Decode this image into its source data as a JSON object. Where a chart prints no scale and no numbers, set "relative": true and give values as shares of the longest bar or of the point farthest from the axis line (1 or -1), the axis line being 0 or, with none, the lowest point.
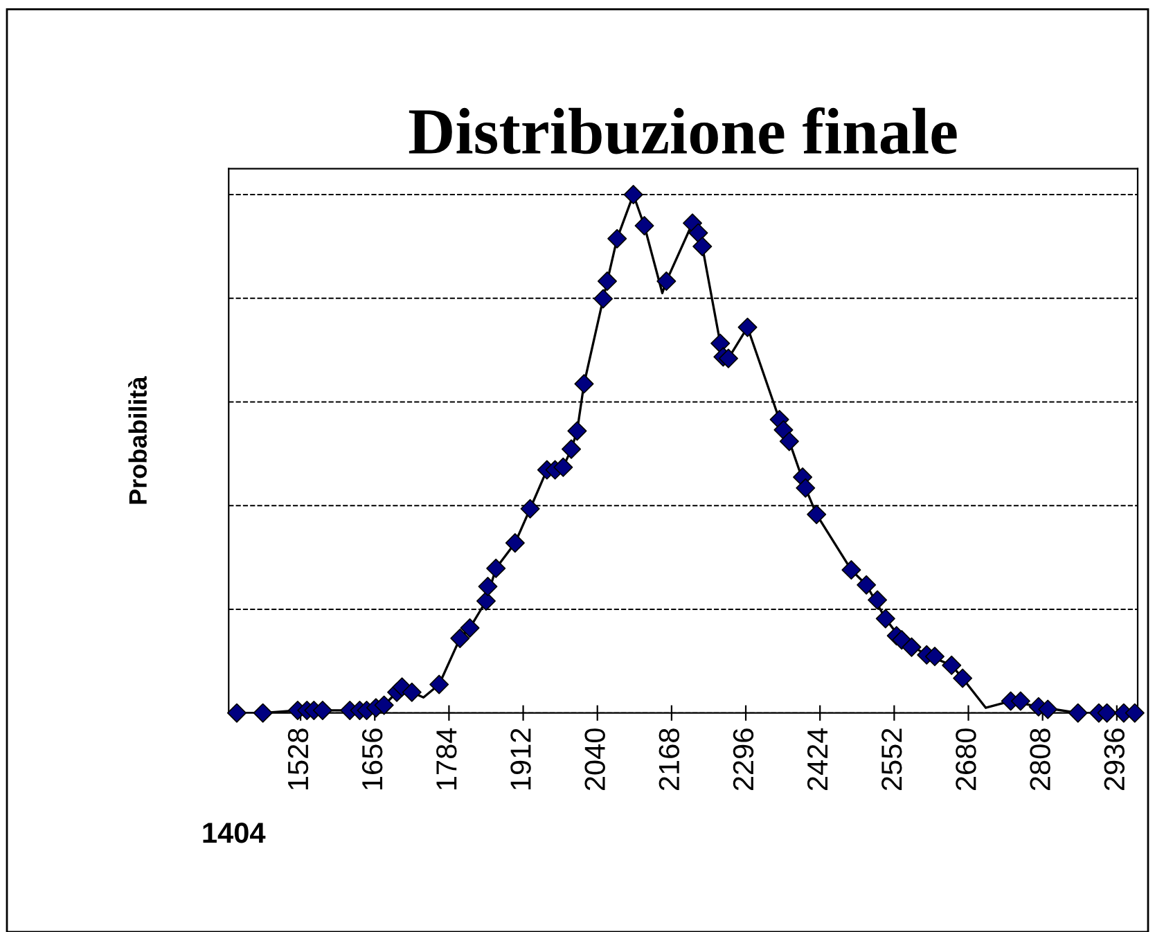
{
  "chart_data": {
    "type": "line",
    "title": "Distribuzione finale",
    "xlabel": "1404",
    "ylabel": "Probabilità",
    "relative": true,
    "xlim": [
      1404,
      2972
    ],
    "xticks": [
      1528,
      1656,
      1784,
      1912,
      2040,
      2168,
      2296,
      2424,
      2552,
      2680,
      2808,
      2936
    ],
    "grid": "y",
    "legend": false,
    "series": [
      {
        "color": "#000000",
        "marker": "none",
        "line_style": "solid",
        "x": [
          1418,
          1463,
          1523,
          1566,
          1613,
          1642,
          1658,
          1672,
          1694,
          1703,
          1720,
          1740,
          1767,
          1803,
          1820,
          1848,
          1865,
          1898,
          1924,
          1953,
          1981,
          1995,
          2005,
          2017,
          2050,
          2057,
          2074,
          2102,
          2121,
          2152,
          2159,
          2204,
          2214,
          2221,
          2252,
          2266,
          2299,
          2354,
          2371,
          2399,
          2418,
          2478,
          2504,
          2537,
          2565,
          2608,
          2651,
          2670,
          2710,
          2753,
          2801,
          2869,
          2967
        ],
        "values": [
          0,
          0,
          0.005,
          0.005,
          0.005,
          0.005,
          0.01,
          0.015,
          0.04,
          0.05,
          0.04,
          0.03,
          0.055,
          0.144,
          0.164,
          0.216,
          0.279,
          0.328,
          0.394,
          0.469,
          0.474,
          0.509,
          0.544,
          0.635,
          0.799,
          0.833,
          0.915,
          1.0,
          0.94,
          0.81,
          0.833,
          0.945,
          0.926,
          0.9,
          0.713,
          0.684,
          0.744,
          0.566,
          0.524,
          0.434,
          0.383,
          0.276,
          0.247,
          0.182,
          0.141,
          0.112,
          0.092,
          0.067,
          0.01,
          0.023,
          0.012,
          0,
          0
        ]
      },
      {
        "type": "scatter",
        "color": "#000080",
        "marker": "diamond",
        "x": [
          1418,
          1463,
          1523,
          1539,
          1551,
          1566,
          1613,
          1630,
          1642,
          1658,
          1672,
          1694,
          1703,
          1720,
          1767,
          1803,
          1820,
          1848,
          1851,
          1865,
          1898,
          1924,
          1953,
          1967,
          1981,
          1995,
          2005,
          2017,
          2050,
          2057,
          2074,
          2102,
          2121,
          2159,
          2204,
          2214,
          2221,
          2252,
          2257,
          2266,
          2299,
          2354,
          2361,
          2371,
          2394,
          2399,
          2418,
          2478,
          2504,
          2523,
          2537,
          2556,
          2565,
          2582,
          2608,
          2622,
          2651,
          2670,
          2753,
          2770,
          2801,
          2817,
          2869,
          2905,
          2919,
          2948,
          2967
        ],
        "values": [
          0,
          0,
          0.005,
          0.005,
          0.005,
          0.005,
          0.005,
          0.005,
          0.005,
          0.01,
          0.015,
          0.04,
          0.05,
          0.04,
          0.055,
          0.144,
          0.164,
          0.216,
          0.244,
          0.279,
          0.328,
          0.394,
          0.469,
          0.469,
          0.474,
          0.509,
          0.544,
          0.635,
          0.799,
          0.833,
          0.915,
          1.0,
          0.94,
          0.833,
          0.945,
          0.926,
          0.9,
          0.713,
          0.687,
          0.684,
          0.744,
          0.566,
          0.546,
          0.524,
          0.455,
          0.434,
          0.383,
          0.276,
          0.247,
          0.218,
          0.182,
          0.149,
          0.141,
          0.127,
          0.112,
          0.109,
          0.092,
          0.067,
          0.023,
          0.023,
          0.012,
          0.007,
          0,
          0,
          0,
          0,
          0
        ]
      }
    ]
  }
}
